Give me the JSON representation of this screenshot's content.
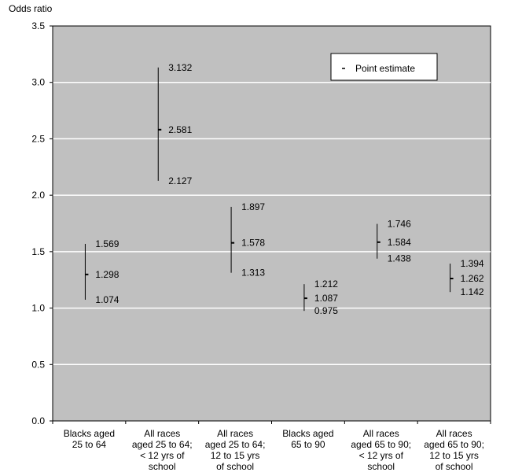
{
  "chart_data": {
    "type": "scatter",
    "ylabel": "Odds ratio",
    "ylim": [
      0,
      3.5
    ],
    "yticks": [
      "0.0",
      "0.5",
      "1.0",
      "1.5",
      "2.0",
      "2.5",
      "3.0",
      "3.5"
    ],
    "grid": true,
    "legend": {
      "placement": "top-right",
      "entry": "Point estimate"
    },
    "categories": [
      [
        "Blacks aged",
        "25 to 64"
      ],
      [
        "All races",
        "aged 25 to 64;",
        "< 12 yrs of",
        "school"
      ],
      [
        "All races",
        "aged 25 to 64;",
        "12 to 15 yrs",
        "of school"
      ],
      [
        "Blacks aged",
        "65 to 90"
      ],
      [
        "All races",
        "aged 65 to 90;",
        "< 12 yrs of",
        "school"
      ],
      [
        "All races",
        "aged 65 to 90;",
        "12 to 15 yrs",
        "of school"
      ]
    ],
    "series": [
      {
        "estimate": [
          1.298,
          2.581,
          1.578,
          1.087,
          1.584,
          1.262
        ],
        "upper": [
          1.569,
          3.132,
          1.897,
          1.212,
          1.746,
          1.394
        ],
        "lower": [
          1.074,
          2.127,
          1.313,
          0.975,
          1.438,
          1.142
        ],
        "estimate_labels": [
          "1.298",
          "2.581",
          "1.578",
          "1.087",
          "1.584",
          "1.262"
        ],
        "upper_labels": [
          "1.569",
          "3.132",
          "1.897",
          "1.212",
          "1.746",
          "1.394"
        ],
        "lower_labels": [
          "1.074",
          "2.127",
          "1.313",
          "0.975",
          "1.438",
          "1.142"
        ]
      }
    ],
    "colors": {
      "plot_background": "#c0c0c0",
      "gridline": "#ffffff",
      "marks": "#000000"
    }
  }
}
